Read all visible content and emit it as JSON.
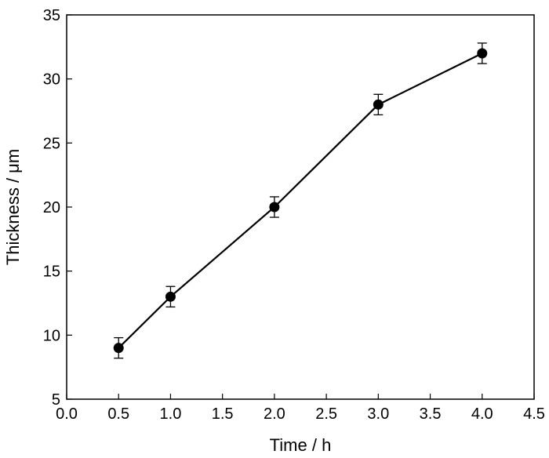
{
  "chart_data": {
    "type": "line",
    "title": "",
    "xlabel": "Time / h",
    "ylabel": "Thickness / μm",
    "xlim": [
      0.0,
      4.5
    ],
    "ylim": [
      5,
      35
    ],
    "xticks": [
      "0.0",
      "0.5",
      "1.0",
      "1.5",
      "2.0",
      "2.5",
      "3.0",
      "3.5",
      "4.0",
      "4.5"
    ],
    "yticks": [
      "5",
      "10",
      "15",
      "20",
      "25",
      "30",
      "35"
    ],
    "grid": false,
    "legend": "none",
    "series": [
      {
        "x": [
          0.5,
          1.0,
          2.0,
          3.0,
          4.0
        ],
        "y": [
          9.0,
          13.0,
          20.0,
          28.0,
          32.0
        ],
        "yerr": [
          0.8,
          0.8,
          0.8,
          0.8,
          0.8
        ],
        "color": "#000000",
        "marker": "filled-circle"
      }
    ]
  }
}
